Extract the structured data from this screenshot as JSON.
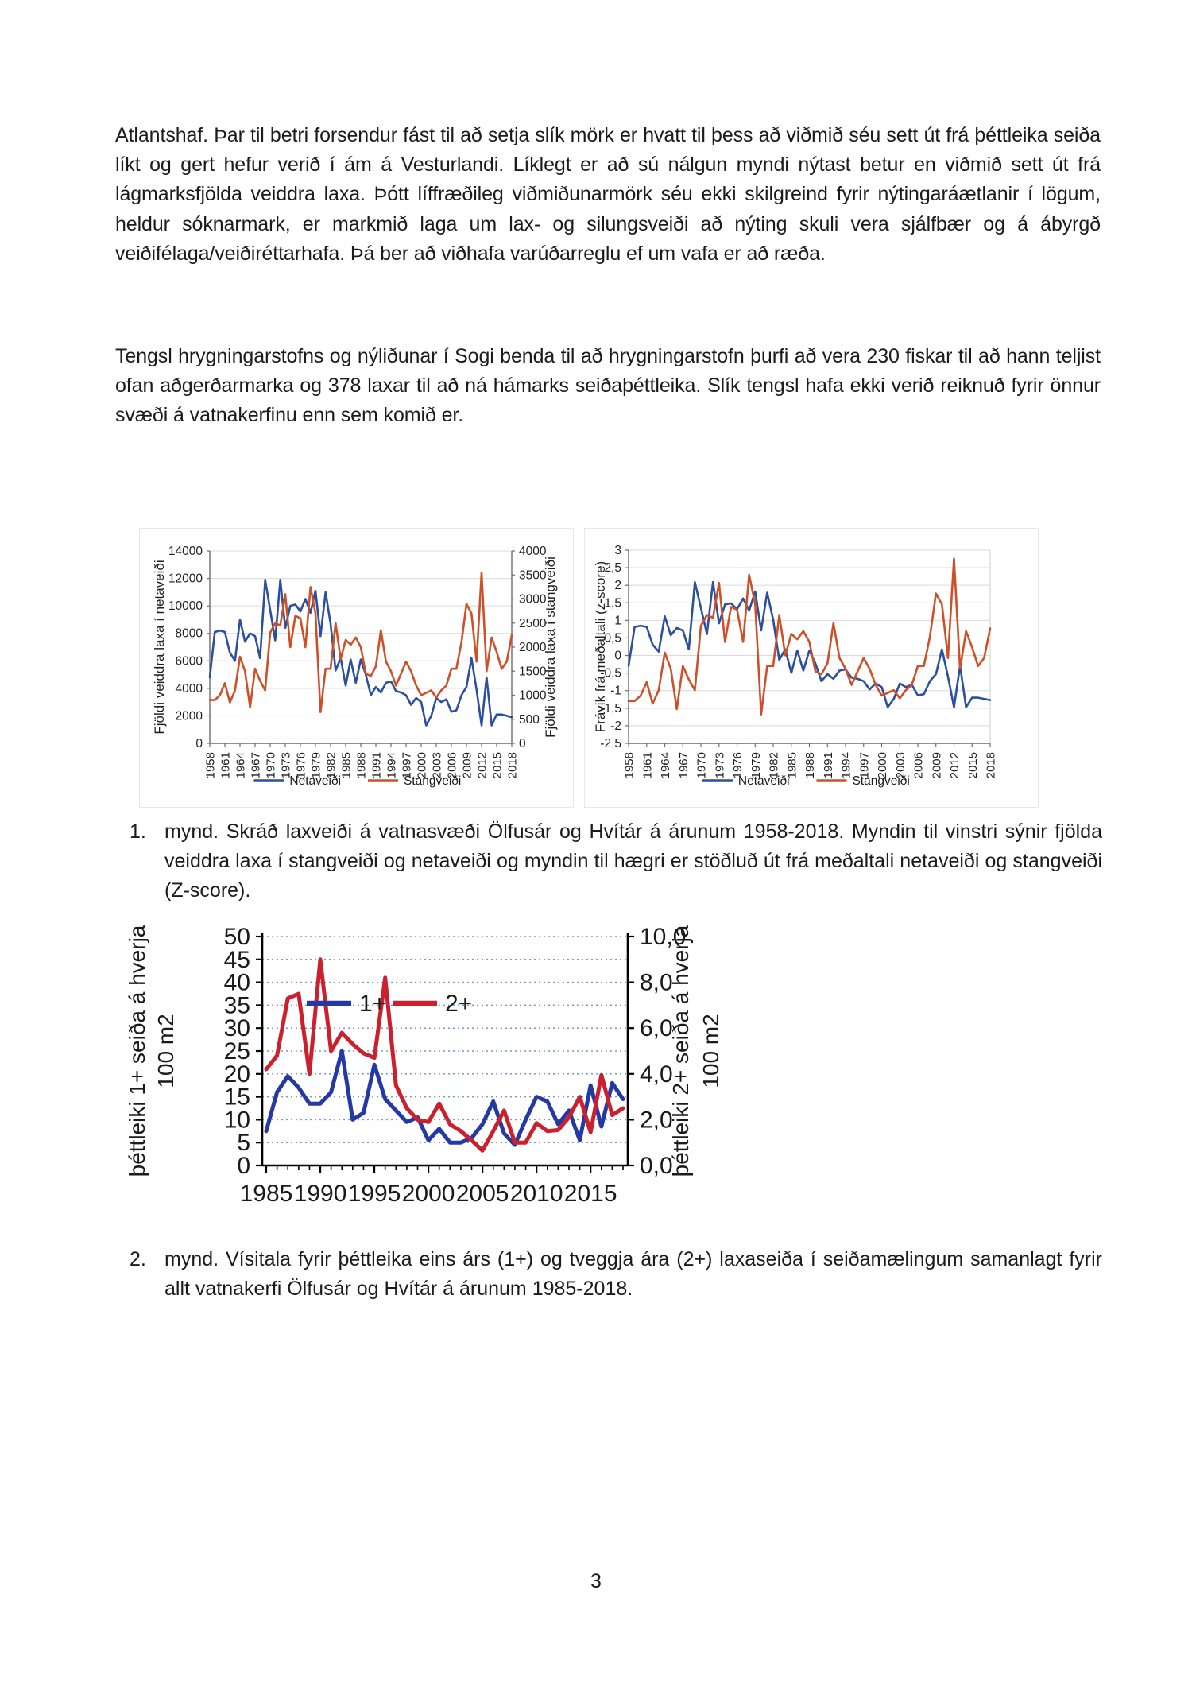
{
  "document": {
    "paragraphs": [
      "Atlantshaf. Þar til betri forsendur fást til að setja slík mörk er hvatt til þess að viðmið séu sett út frá þéttleika seiða líkt og gert hefur verið í ám á Vesturlandi. Líklegt er að sú nálgun myndi nýtast betur en viðmið sett út frá lágmarksfjölda veiddra laxa. Þótt líffræðileg viðmiðunarmörk séu ekki skilgreind fyrir nýtingaráætlanir í lögum, heldur sóknarmark, er markmið laga um lax- og silungsveiði að nýting skuli vera sjálfbær og á ábyrgð veiðifélaga/veiðiréttarhafa. Þá ber að viðhafa varúðarreglu ef um vafa er að ræða.",
      "Tengsl hrygningarstofns og nýliðunar í Sogi benda til að hrygningarstofn þurfi að vera 230 fiskar til að hann teljist ofan aðgerðarmarka og 378 laxar til að ná hámarks seiðaþéttleika. Slík tengsl hafa ekki verið reiknuð fyrir önnur svæði á vatnakerfinu enn sem komið er."
    ],
    "captions": [
      {
        "number": "1.",
        "text": "mynd. Skráð laxveiði á vatnasvæði Ölfusár og Hvítár á árunum 1958-2018. Myndin til vinstri sýnir fjölda veiddra laxa í stangveiði og netaveiði og myndin til hægri er stöðluð út frá meðaltali netaveiði og stangveiði (Z-score)."
      },
      {
        "number": "2.",
        "text": "mynd. Vísitala fyrir þéttleika eins árs (1+) og tveggja ára (2+) laxaseiða í seiðamælingum samanlagt fyrir allt vatnakerfi Ölfusár og Hvítár á árunum 1985-2018."
      }
    ],
    "page_number": "3"
  },
  "chart_data": [
    {
      "type": "line",
      "id": "catch-counts",
      "ylabel_left": "Fjöldi veiddra laxa í netaveiði",
      "ylabel_right": "Fjöldi veiddra laxa í stangveiði",
      "ylim_left": [
        0,
        14000
      ],
      "ytick_step_left": 2000,
      "ylim_right": [
        0,
        4000
      ],
      "ytick_step_right": 500,
      "x_start": 1958,
      "x_end": 2018,
      "x_tick_years": [
        1958,
        1961,
        1964,
        1967,
        1970,
        1973,
        1976,
        1979,
        1982,
        1985,
        1988,
        1991,
        1994,
        1997,
        2000,
        2003,
        2006,
        2009,
        2012,
        2015,
        2018
      ],
      "grid": true,
      "legend_position": "bottom",
      "series": [
        {
          "name": "Netaveiði",
          "axis": "left",
          "color": "#2c4f9e",
          "values": [
            4800,
            8100,
            8200,
            8100,
            6600,
            6000,
            9000,
            7400,
            8000,
            7800,
            6200,
            11900,
            9700,
            7500,
            11900,
            8400,
            10000,
            10100,
            9600,
            10500,
            9500,
            11100,
            7800,
            11000,
            8700,
            5300,
            6200,
            4200,
            6100,
            4400,
            6100,
            5000,
            3500,
            4100,
            3700,
            4400,
            4500,
            3800,
            3700,
            3500,
            2800,
            3300,
            3000,
            1300,
            2000,
            3300,
            3000,
            3200,
            2300,
            2400,
            3500,
            4100,
            6200,
            3900,
            1300,
            4800,
            1300,
            2100,
            2100,
            2000,
            1900
          ]
        },
        {
          "name": "Stangveiði",
          "axis": "right",
          "color": "#cc5128",
          "values": [
            900,
            900,
            1000,
            1250,
            850,
            1100,
            1800,
            1500,
            750,
            1550,
            1300,
            1100,
            2300,
            2500,
            2450,
            3100,
            2000,
            2650,
            2600,
            2000,
            3250,
            2700,
            650,
            1550,
            1550,
            2500,
            1750,
            2150,
            2050,
            2200,
            2000,
            1450,
            1400,
            1600,
            2350,
            1700,
            1500,
            1200,
            1450,
            1700,
            1500,
            1200,
            1000,
            1050,
            1100,
            950,
            1100,
            1200,
            1550,
            1550,
            2100,
            2900,
            2700,
            1700,
            3550,
            1500,
            2200,
            1900,
            1550,
            1700,
            2250
          ]
        }
      ]
    },
    {
      "type": "line",
      "id": "catch-zscore",
      "ylabel": "Frávik frá meðaltali (z-score)",
      "ylim": [
        -2.5,
        3
      ],
      "ytick_step": 0.5,
      "x_start": 1958,
      "x_end": 2018,
      "x_tick_years": [
        1958,
        1961,
        1964,
        1967,
        1970,
        1973,
        1976,
        1979,
        1982,
        1985,
        1988,
        1991,
        1994,
        1997,
        2000,
        2003,
        2006,
        2009,
        2012,
        2015,
        2018
      ],
      "grid": true,
      "legend_position": "bottom",
      "transform": "z-score (standardized from mean) of the series in chart catch-counts",
      "series": [
        {
          "name": "Netaveiði",
          "color": "#2c4f9e",
          "source_chart": 0,
          "source_series": 0
        },
        {
          "name": "Stangveiði",
          "color": "#cc5128",
          "source_chart": 0,
          "source_series": 1
        }
      ]
    },
    {
      "type": "line",
      "id": "seidathettleiki",
      "ylabel_left_line1": "þéttleiki 1+ seiða á hverja",
      "ylabel_left_line2": "100 m2",
      "ylabel_right_line1": "þéttleiki 2+ seiða á hverja",
      "ylabel_right_line2": "100 m2",
      "ylim_left": [
        0,
        50
      ],
      "ytick_step_left": 5,
      "ylim_right": [
        0,
        10
      ],
      "ytick_labels_right": [
        "0,0",
        "2,0",
        "4,0",
        "6,0",
        "8,0",
        "10,0"
      ],
      "x_start": 1985,
      "x_end": 2018,
      "x_tick_years": [
        1985,
        1990,
        1995,
        2000,
        2005,
        2010,
        2015
      ],
      "grid": "dotted",
      "legend_position": "inside-top",
      "series": [
        {
          "name": "1+",
          "axis": "left",
          "color": "#2439a4",
          "values": [
            7.5,
            16,
            19.5,
            17,
            13.5,
            13.5,
            16,
            25,
            10,
            11.5,
            22,
            14.5,
            12,
            9.5,
            10.5,
            5.5,
            8,
            5,
            5,
            6,
            9,
            14,
            7,
            4.5,
            10,
            15,
            14,
            9,
            12,
            5.5,
            17.5,
            8.5,
            18,
            14.5
          ]
        },
        {
          "name": "2+",
          "axis": "right",
          "color": "#cb202e",
          "values": [
            4.2,
            4.8,
            7.3,
            7.5,
            4.0,
            9.0,
            5.0,
            5.8,
            5.3,
            4.9,
            4.7,
            8.2,
            3.5,
            2.5,
            2.0,
            1.9,
            2.7,
            1.8,
            1.5,
            1.1,
            0.65,
            1.5,
            2.4,
            1.0,
            1.0,
            1.85,
            1.5,
            1.55,
            2.1,
            3.0,
            1.45,
            3.95,
            2.2,
            2.5
          ]
        }
      ]
    }
  ]
}
